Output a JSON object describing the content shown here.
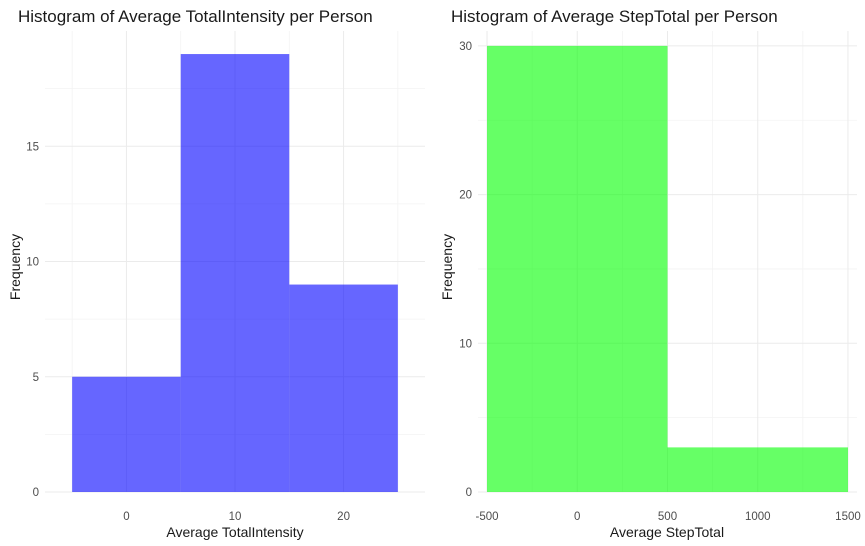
{
  "chart_data": [
    {
      "type": "bar",
      "title": "Histogram of Average TotalIntensity per Person",
      "xlabel": "Average TotalIntensity",
      "ylabel": "Frequency",
      "fill_color": "#0000ff",
      "fill_opacity": 0.6,
      "bins": [
        {
          "from": -5,
          "to": 5,
          "count": 5
        },
        {
          "from": 5,
          "to": 15,
          "count": 19
        },
        {
          "from": 15,
          "to": 25,
          "count": 9
        }
      ],
      "xlim": [
        -7.5,
        27.5
      ],
      "ylim": [
        0,
        20
      ],
      "x_ticks": [
        0,
        10,
        20
      ],
      "x_tick_labels": [
        "0",
        "10",
        "20"
      ],
      "y_ticks": [
        0,
        5,
        10,
        15
      ],
      "y_tick_labels": [
        "0",
        "5",
        "10",
        "15"
      ],
      "grid": true
    },
    {
      "type": "bar",
      "title": "Histogram of Average StepTotal per Person",
      "xlabel": "Average StepTotal",
      "ylabel": "Frequency",
      "fill_color": "#00ff00",
      "fill_opacity": 0.6,
      "bins": [
        {
          "from": -500,
          "to": 500,
          "count": 30
        },
        {
          "from": 500,
          "to": 1500,
          "count": 3
        }
      ],
      "xlim": [
        -550,
        1550
      ],
      "ylim": [
        0,
        31
      ],
      "x_ticks": [
        -500,
        0,
        500,
        1000,
        1500
      ],
      "x_tick_labels": [
        "-500",
        "0",
        "500",
        "1000",
        "1500"
      ],
      "y_ticks": [
        0,
        10,
        20,
        30
      ],
      "y_tick_labels": [
        "0",
        "10",
        "20",
        "30"
      ],
      "grid": true
    }
  ]
}
